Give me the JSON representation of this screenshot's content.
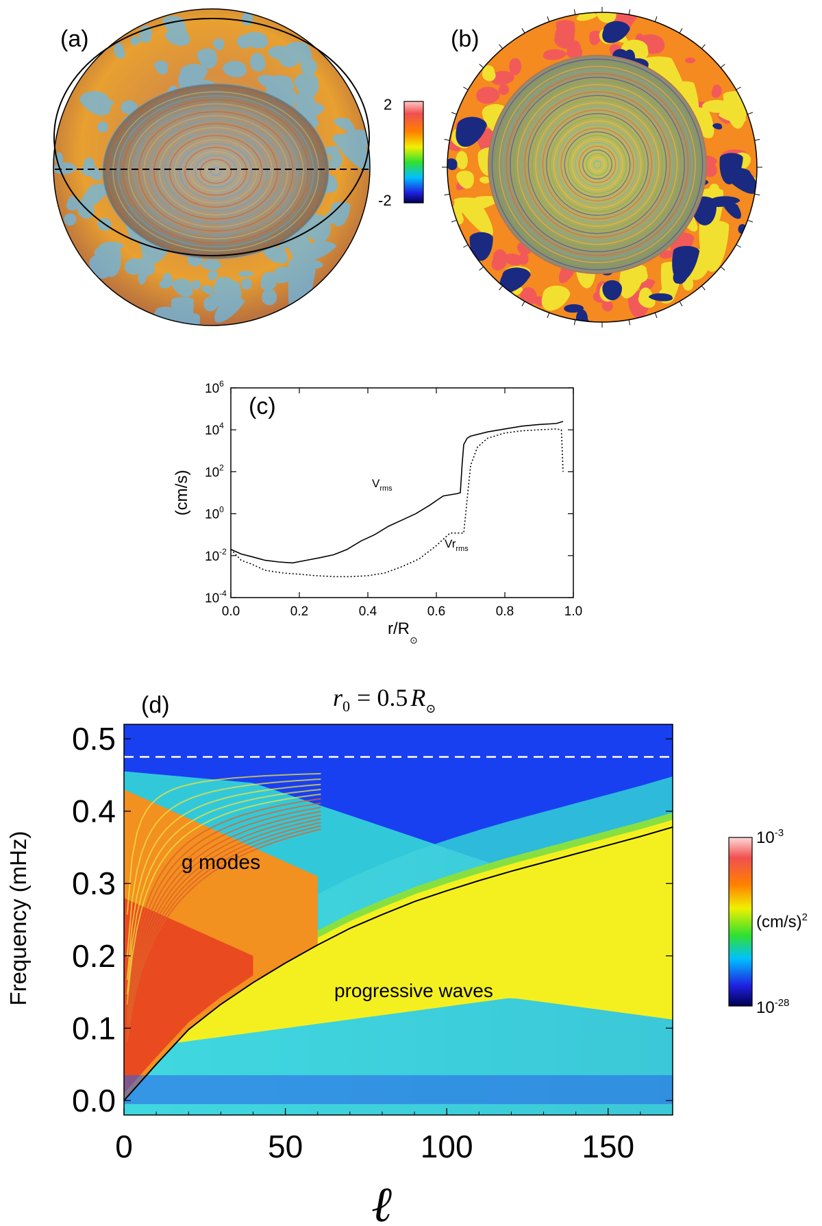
{
  "panels": {
    "a": {
      "label": "(a)"
    },
    "b": {
      "label": "(b)"
    }
  },
  "colorbar_ab": {
    "max_label": "2",
    "min_label": "-2"
  },
  "colorbar_d": {
    "top_base": "10",
    "top_exp": "-3",
    "mid_label": "(cm/s)",
    "mid_exp": "2",
    "bottom_base": "10",
    "bottom_exp": "-28"
  },
  "chart_data": [
    {
      "panel": "(c)",
      "type": "line",
      "xlabel": "r/R",
      "xlabel_sub": "⊙",
      "ylabel": "(cm/s)",
      "xlim": [
        0.0,
        1.0
      ],
      "ylim_log10": [
        -4,
        6
      ],
      "y_scale": "log",
      "x_ticks": [
        "0.0",
        "0.2",
        "0.4",
        "0.6",
        "0.8",
        "1.0"
      ],
      "y_ticks": [
        {
          "base": "10",
          "exp": "6"
        },
        {
          "base": "10",
          "exp": "4"
        },
        {
          "base": "10",
          "exp": "2"
        },
        {
          "base": "10",
          "exp": "0"
        },
        {
          "base": "10",
          "exp": "-2"
        },
        {
          "base": "10",
          "exp": "-4"
        }
      ],
      "series": [
        {
          "name": "V",
          "name_sub": "rms",
          "style": "solid",
          "x": [
            0.0,
            0.03,
            0.06,
            0.1,
            0.14,
            0.18,
            0.22,
            0.26,
            0.3,
            0.34,
            0.38,
            0.42,
            0.46,
            0.5,
            0.54,
            0.58,
            0.62,
            0.66,
            0.67,
            0.675,
            0.68,
            0.69,
            0.7,
            0.75,
            0.8,
            0.85,
            0.9,
            0.95,
            0.97
          ],
          "y": [
            0.02,
            0.012,
            0.009,
            0.006,
            0.005,
            0.0045,
            0.006,
            0.008,
            0.011,
            0.02,
            0.05,
            0.1,
            0.25,
            0.5,
            1.0,
            2.5,
            7,
            9,
            10,
            200,
            2000,
            4000,
            5000,
            8000,
            11000,
            15000,
            18000,
            20000,
            25000
          ]
        },
        {
          "name": "Vr",
          "name_sub": "rms",
          "style": "dotted",
          "x": [
            0.0,
            0.03,
            0.06,
            0.1,
            0.15,
            0.2,
            0.25,
            0.3,
            0.35,
            0.4,
            0.45,
            0.5,
            0.55,
            0.6,
            0.64,
            0.66,
            0.68,
            0.69,
            0.7,
            0.72,
            0.75,
            0.8,
            0.85,
            0.9,
            0.95,
            0.965,
            0.97
          ],
          "y": [
            0.02,
            0.006,
            0.004,
            0.002,
            0.0015,
            0.0013,
            0.0011,
            0.001,
            0.001,
            0.0011,
            0.0015,
            0.003,
            0.007,
            0.03,
            0.12,
            0.12,
            0.12,
            5,
            200,
            1500,
            4000,
            7000,
            9000,
            10000,
            11000,
            10000,
            100
          ]
        }
      ]
    },
    {
      "panel": "(d)",
      "type": "heatmap",
      "title_lhs": "r",
      "title_lhs_sub": "0",
      "title_rhs": "= 0.5",
      "title_unit": "R",
      "title_unit_sub": "⊙",
      "xlabel": "ℓ",
      "ylabel": "Frequency (mHz)",
      "xlim": [
        0,
        170
      ],
      "ylim": [
        -0.02,
        0.52
      ],
      "x_ticks": [
        "0",
        "50",
        "100",
        "150"
      ],
      "y_ticks": [
        "0.0",
        "0.1",
        "0.2",
        "0.3",
        "0.4",
        "0.5"
      ],
      "annotations": [
        "g modes",
        "progressive waves"
      ],
      "boundary_curve": {
        "x": [
          0,
          5,
          10,
          20,
          30,
          40,
          50,
          60,
          70,
          80,
          90,
          100,
          110,
          120,
          130,
          140,
          150,
          160,
          170
        ],
        "y": [
          0.0,
          0.025,
          0.05,
          0.098,
          0.133,
          0.163,
          0.19,
          0.215,
          0.238,
          0.257,
          0.275,
          0.29,
          0.304,
          0.317,
          0.329,
          0.341,
          0.353,
          0.365,
          0.378
        ]
      },
      "dashed_line_y": 0.475
    }
  ]
}
